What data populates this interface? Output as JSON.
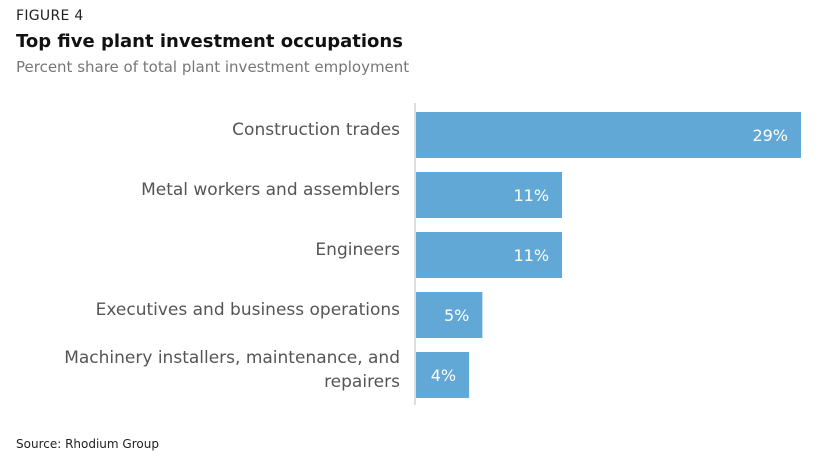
{
  "figure_label": "FIGURE 4",
  "title": "Top five plant investment occupations",
  "subtitle": "Percent share of total plant investment employment",
  "source": "Source: Rhodium Group",
  "colors": {
    "bar": "#62a8d6",
    "axis": "#bbbbbb"
  },
  "chart_data": {
    "type": "bar",
    "orientation": "horizontal",
    "categories": [
      [
        "Construction trades"
      ],
      [
        "Metal workers and assemblers"
      ],
      [
        "Engineers"
      ],
      [
        "Executives and business operations"
      ],
      [
        "Machinery installers, maintenance, and",
        "repairers"
      ]
    ],
    "values": [
      29,
      11,
      11,
      5,
      4
    ],
    "value_labels": [
      "29%",
      "11%",
      "11%",
      "5%",
      "4%"
    ],
    "title": "Top five plant investment occupations",
    "xlabel": "",
    "ylabel": "",
    "xlim": [
      0,
      29
    ],
    "grid": false,
    "legend": "none"
  }
}
